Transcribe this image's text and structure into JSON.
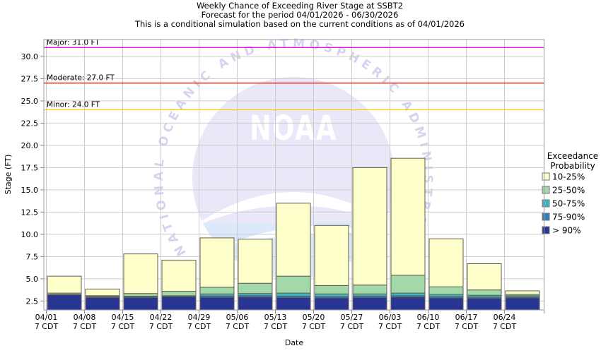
{
  "title": {
    "line1": "Weekly Chance of Exceeding River Stage at SSBT2",
    "line2": "Forecast for the period 04/01/2026 - 06/30/2026",
    "line3": "This is a conditional simulation based on the current conditions as of 04/01/2026"
  },
  "axes": {
    "x_title": "Date",
    "y_title": "Stage (FT)",
    "x_tick_sub_label": "7 CDT"
  },
  "legend": {
    "title_line1": "Exceedance",
    "title_line2": "Probability",
    "items": [
      {
        "label": "10-25%",
        "color": "#FFFFCC"
      },
      {
        "label": "25-50%",
        "color": "#A3D8A8"
      },
      {
        "label": "50-75%",
        "color": "#3EB6C6"
      },
      {
        "label": "75-90%",
        "color": "#2E7EBC"
      },
      {
        "label": "> 90%",
        "color": "#283593"
      }
    ]
  },
  "watermark": {
    "ring_text": "NATIONAL OCEANIC AND ATMOSPHERIC ADMINISTRATION",
    "center_text": "NOAA"
  },
  "chart_data": {
    "type": "bar",
    "subtype": "stacked-exceedance",
    "categories": [
      "04/01",
      "04/08",
      "04/15",
      "04/22",
      "04/29",
      "05/06",
      "05/13",
      "05/20",
      "05/27",
      "06/03",
      "06/10",
      "06/17",
      "06/24"
    ],
    "category_sub_label": "7 CDT",
    "xlabel": "Date",
    "ylabel": "Stage (FT)",
    "ylim": [
      1.5,
      31.9
    ],
    "baseline": 1.5,
    "yticks": [
      2.5,
      5.0,
      7.5,
      10.0,
      12.5,
      15.0,
      17.5,
      20.0,
      22.5,
      25.0,
      27.5,
      30.0
    ],
    "grid": true,
    "legend_position": "right",
    "series": [
      {
        "name": "> 90%",
        "color": "#283593",
        "tops": [
          3.2,
          2.9,
          2.9,
          3.0,
          2.92,
          2.95,
          2.9,
          2.85,
          2.9,
          2.95,
          2.85,
          2.8,
          2.85
        ]
      },
      {
        "name": "75-90%",
        "color": "#2E7EBC",
        "tops": [
          3.2,
          2.95,
          3.0,
          3.05,
          3.07,
          3.1,
          3.05,
          3.0,
          3.05,
          3.1,
          3.0,
          2.95,
          2.95
        ]
      },
      {
        "name": "50-75%",
        "color": "#3EB6C6",
        "tops": [
          3.25,
          3.0,
          3.05,
          3.1,
          3.3,
          3.35,
          3.4,
          3.3,
          3.3,
          3.4,
          3.25,
          3.15,
          3.1
        ]
      },
      {
        "name": "25-50%",
        "color": "#A3D8A8",
        "tops": [
          3.4,
          3.1,
          3.35,
          3.6,
          4.05,
          4.5,
          5.3,
          4.25,
          4.3,
          5.4,
          4.1,
          3.75,
          3.25
        ]
      },
      {
        "name": "10-25%",
        "color": "#FFFFCC",
        "tops": [
          5.3,
          3.85,
          7.8,
          7.1,
          9.6,
          9.45,
          13.5,
          11.0,
          17.5,
          18.55,
          9.5,
          6.7,
          3.65
        ]
      }
    ],
    "thresholds": [
      {
        "name": "Major",
        "label": "Major: 31.0 FT",
        "value": 31.0,
        "color": "#FF00FF"
      },
      {
        "name": "Moderate",
        "label": "Moderate: 27.0 FT",
        "value": 27.0,
        "color": "#FF0000"
      },
      {
        "name": "Minor",
        "label": "Minor: 24.0 FT",
        "value": 24.0,
        "color": "#FFCC00"
      }
    ]
  },
  "style": {
    "grid_color": "#cccccc",
    "spine_color": "#9a9a9a",
    "bar_border_color": "#5f5f52",
    "tick_color": "#888888"
  }
}
